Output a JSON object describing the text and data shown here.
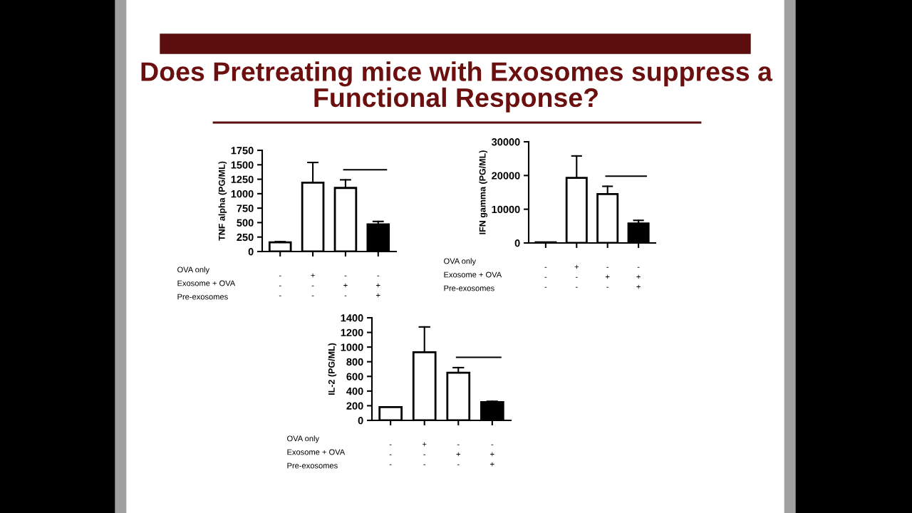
{
  "chart_data": [
    {
      "type": "bar",
      "title": "Does Pretreating mice with Exosomes suppress a Functional Response?",
      "ylabel": "TNF alpha (PG/ML)",
      "categories": [
        "-\n-\n-",
        "+\n-\n-",
        "-\n+\n-",
        "-\n+\n+"
      ],
      "values": [
        160,
        1190,
        1100,
        470
      ],
      "colors": [
        "#ffffff",
        "#ffffff",
        "#ffffff",
        "#000000"
      ],
      "errors": [
        [
          160,
          170
        ],
        [
          1190,
          1540
        ],
        [
          1100,
          1240
        ],
        [
          470,
          520
        ]
      ],
      "ylim": [
        0,
        1750
      ],
      "yticks": [
        0,
        250,
        500,
        750,
        1000,
        1250,
        1500,
        1750
      ],
      "grid": false,
      "annotations": [
        "OVA only",
        "Exosome + OVA",
        "Pre-exosomes"
      ]
    },
    {
      "type": "bar",
      "ylabel": "IFN gamma (PG/ML)",
      "categories": [
        "-\n-\n-",
        "+\n-\n-",
        "-\n+\n-",
        "-\n+\n+"
      ],
      "values": [
        200,
        19300,
        14500,
        5800
      ],
      "colors": [
        "#ffffff",
        "#ffffff",
        "#ffffff",
        "#000000"
      ],
      "errors": [
        null,
        [
          19300,
          25800
        ],
        [
          14500,
          16800
        ],
        [
          5800,
          6700
        ]
      ],
      "ylim": [
        0,
        30000
      ],
      "yticks": [
        0,
        10000,
        20000,
        30000
      ],
      "grid": false,
      "annotations": [
        "OVA only",
        "Exosome + OVA",
        "Pre-exosomes"
      ]
    },
    {
      "type": "bar",
      "ylabel": "IL-2 (PG/ML)",
      "categories": [
        "-\n-\n-",
        "+\n-\n-",
        "-\n+\n-",
        "-\n+\n+"
      ],
      "values": [
        180,
        930,
        650,
        250
      ],
      "colors": [
        "#ffffff",
        "#ffffff",
        "#ffffff",
        "#000000"
      ],
      "errors": [
        null,
        [
          930,
          1275
        ],
        [
          650,
          720
        ],
        [
          250,
          260
        ]
      ],
      "ylim": [
        0,
        1400
      ],
      "yticks": [
        0,
        200,
        400,
        600,
        800,
        1000,
        1200,
        1400
      ],
      "grid": false,
      "annotations": [
        "OVA only",
        "Exosome + OVA",
        "Pre-exosomes"
      ]
    }
  ]
}
